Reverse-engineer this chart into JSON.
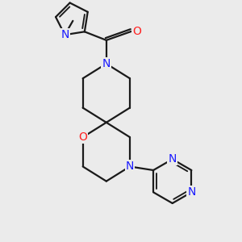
{
  "background_color": "#ebebeb",
  "bond_color": "#1a1a1a",
  "bond_width": 1.6,
  "atom_colors": {
    "N": "#1a1aff",
    "O": "#ff2020",
    "C": "#1a1a1a"
  },
  "font_size_atom": 10,
  "fig_size": [
    3.0,
    3.0
  ],
  "dpi": 100,
  "xlim": [
    0.5,
    7.5
  ],
  "ylim": [
    0.3,
    8.5
  ]
}
